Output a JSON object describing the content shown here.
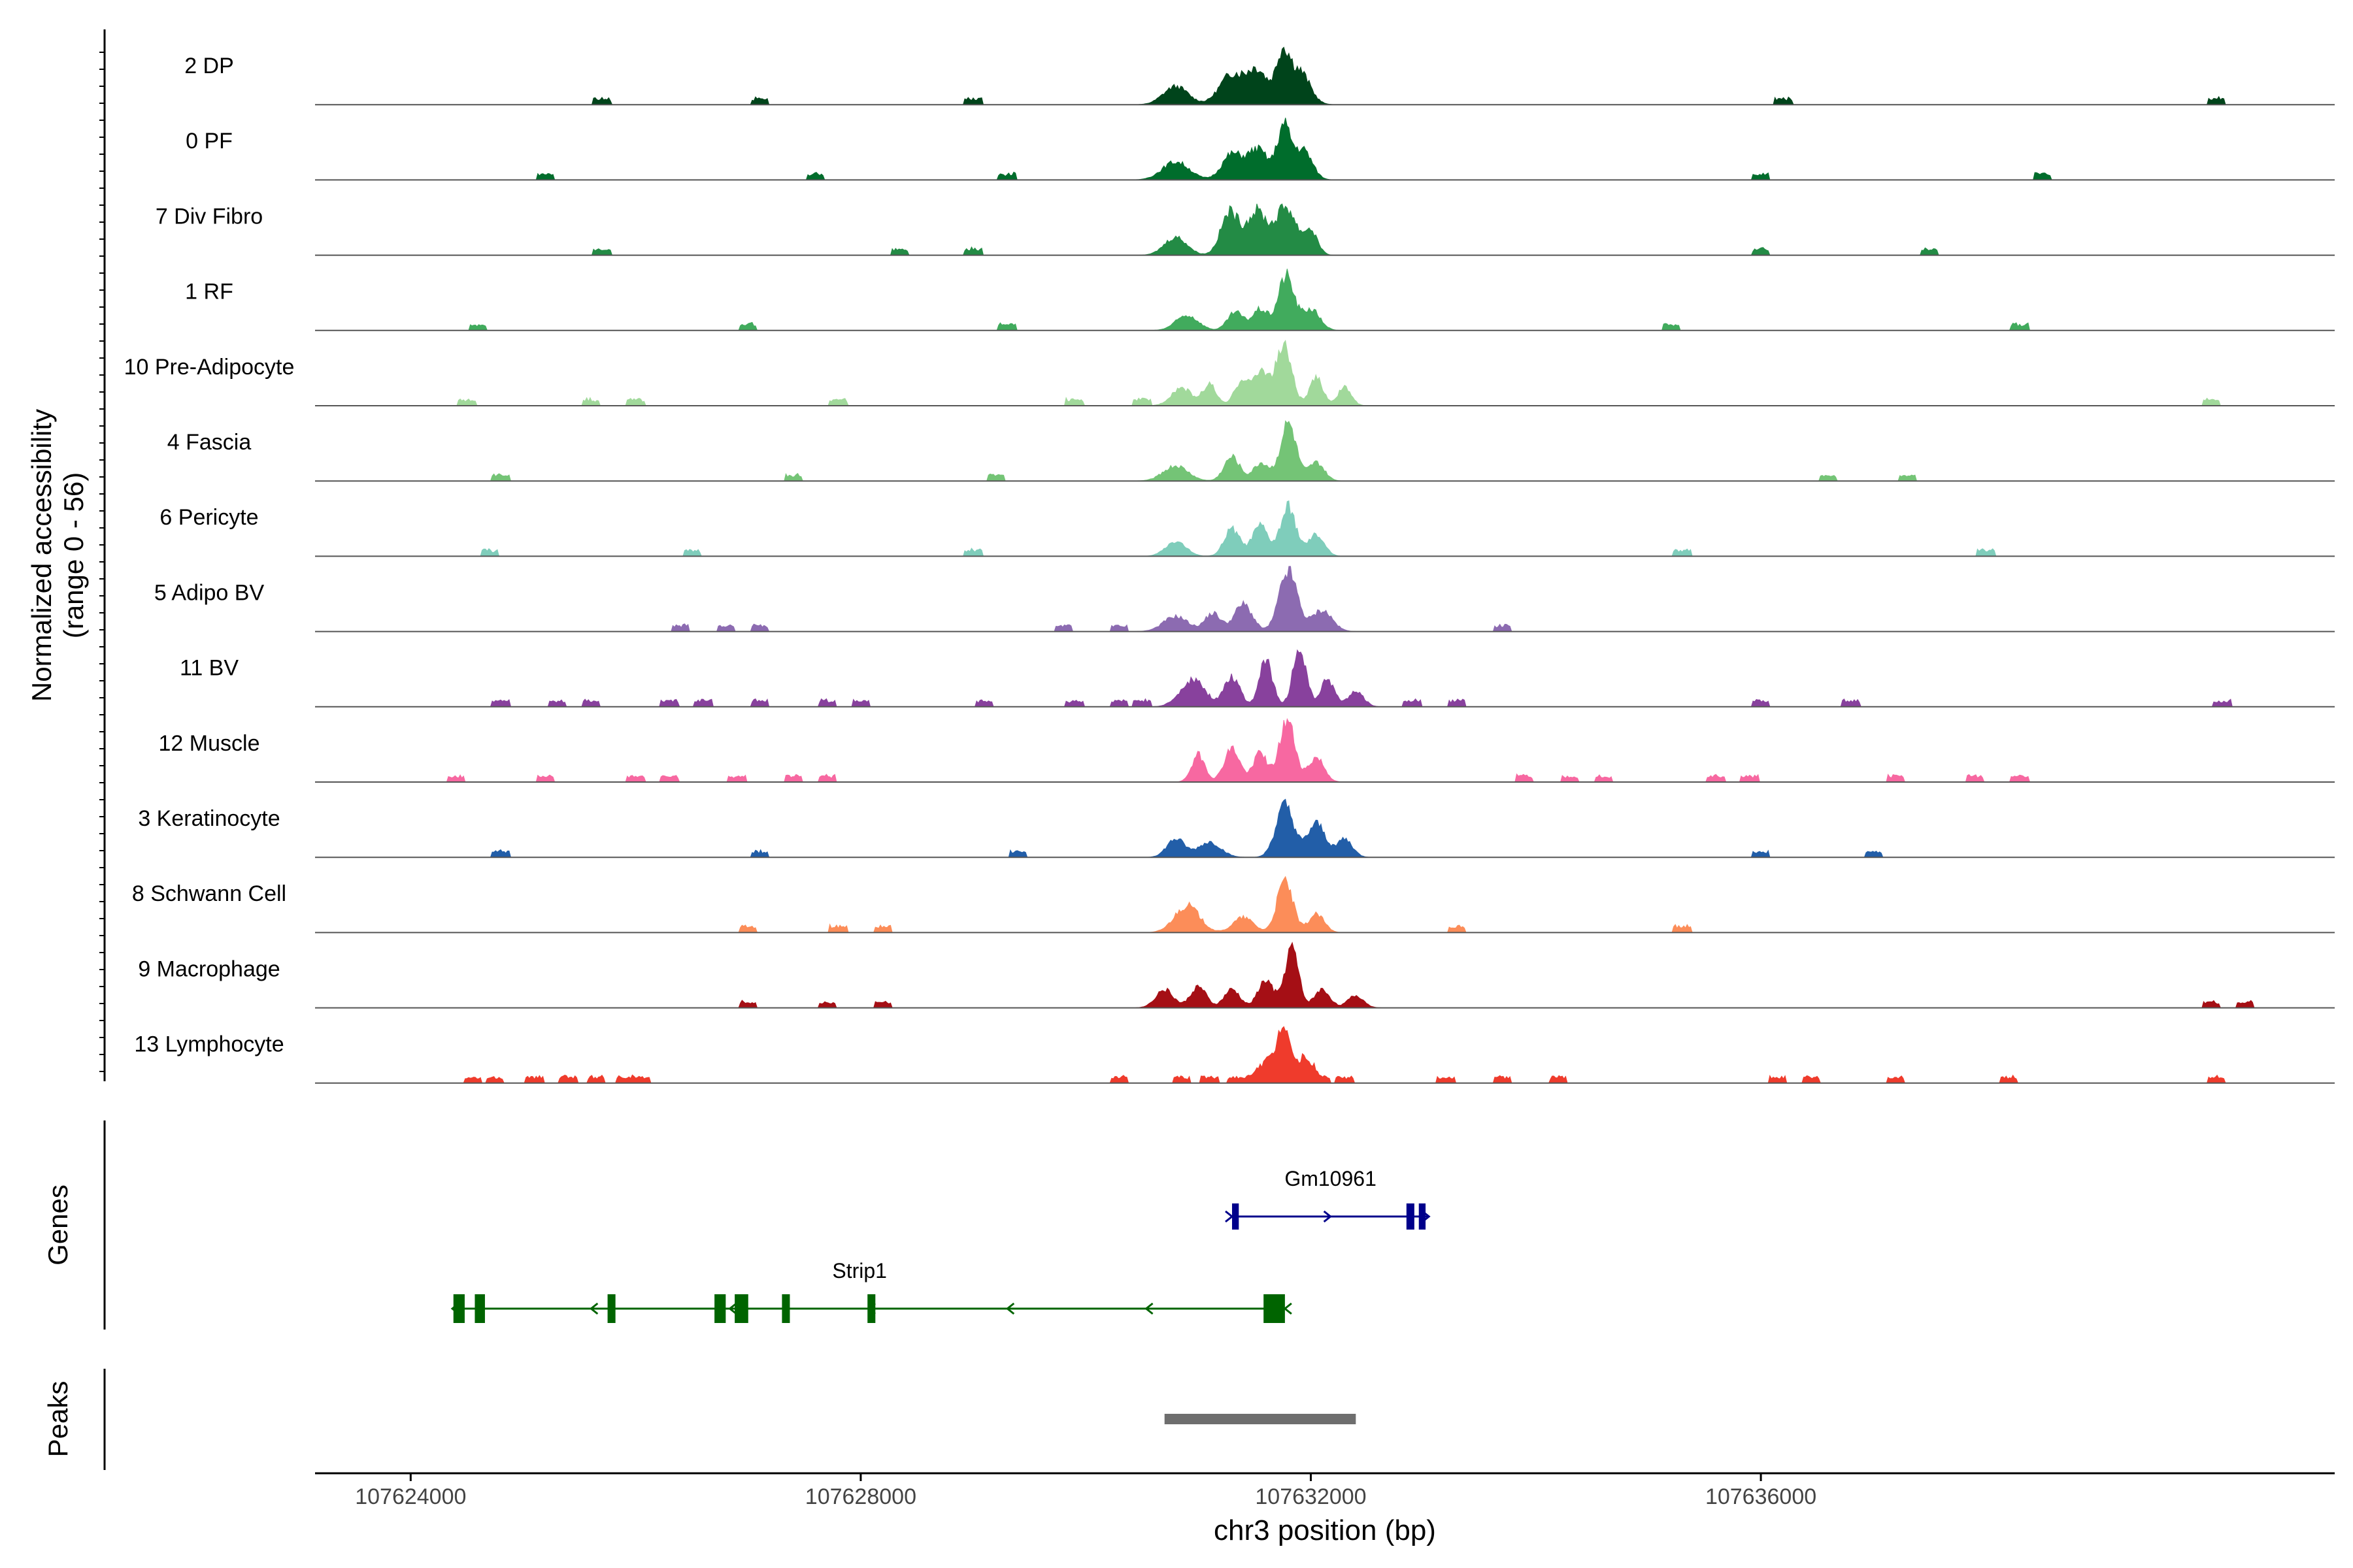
{
  "chart_data": {
    "type": "area",
    "title": "",
    "xlabel": "chr3 position (bp)",
    "ylabel_lines": [
      "Normalized accessibility",
      "(range 0 - 56)"
    ],
    "yrange": [
      0,
      56
    ],
    "xlim": [
      107623150,
      107641100
    ],
    "xticks": [
      107624000,
      107628000,
      107632000,
      107636000
    ],
    "xtick_labels": [
      "107624000",
      "107628000",
      "107632000",
      "107636000"
    ],
    "tracks": [
      {
        "label": "2 DP",
        "color": "#00441b",
        "peaks": [
          [
            107630800,
            110,
            0.3
          ],
          [
            107631300,
            110,
            0.5
          ],
          [
            107631530,
            90,
            0.55
          ],
          [
            107631750,
            60,
            0.8
          ],
          [
            107631900,
            90,
            0.55
          ]
        ],
        "blips": [
          107625700,
          107627100,
          107629000,
          107636200,
          107640050
        ]
      },
      {
        "label": "0 PF",
        "color": "#006d2c",
        "peaks": [
          [
            107630800,
            120,
            0.3
          ],
          [
            107631300,
            90,
            0.42
          ],
          [
            107631530,
            90,
            0.5
          ],
          [
            107631760,
            60,
            0.85
          ],
          [
            107631930,
            80,
            0.5
          ]
        ],
        "blips": [
          107625200,
          107627600,
          107629300,
          107636000,
          107638500
        ]
      },
      {
        "label": "7 Div Fibro",
        "color": "#238b45",
        "peaks": [
          [
            107630800,
            100,
            0.3
          ],
          [
            107631280,
            80,
            0.7
          ],
          [
            107631520,
            90,
            0.72
          ],
          [
            107631780,
            90,
            0.8
          ],
          [
            107632000,
            60,
            0.4
          ]
        ],
        "blips": [
          107625700,
          107628350,
          107629000,
          107636000,
          107637500
        ]
      },
      {
        "label": "1 RF",
        "color": "#41ab5d",
        "peaks": [
          [
            107630900,
            100,
            0.25
          ],
          [
            107631330,
            70,
            0.3
          ],
          [
            107631550,
            70,
            0.35
          ],
          [
            107631780,
            70,
            0.9
          ],
          [
            107632000,
            80,
            0.35
          ]
        ],
        "blips": [
          107624600,
          107627000,
          107629300,
          107635200,
          107638300
        ]
      },
      {
        "label": "10 Pre-Adipocyte",
        "color": "#a1d99b",
        "peaks": [
          [
            107630850,
            90,
            0.3
          ],
          [
            107631100,
            60,
            0.35
          ],
          [
            107631400,
            70,
            0.45
          ],
          [
            107631570,
            60,
            0.55
          ],
          [
            107631760,
            70,
            1.0
          ],
          [
            107632050,
            60,
            0.45
          ],
          [
            107632300,
            60,
            0.3
          ]
        ],
        "blips": [
          107624500,
          107625600,
          107626000,
          107627800,
          107629900,
          107630500,
          107640000
        ]
      },
      {
        "label": "4 Fascia",
        "color": "#74c476",
        "peaks": [
          [
            107630800,
            110,
            0.25
          ],
          [
            107631300,
            70,
            0.4
          ],
          [
            107631560,
            70,
            0.3
          ],
          [
            107631800,
            70,
            0.95
          ],
          [
            107632050,
            70,
            0.3
          ]
        ],
        "blips": [
          107624800,
          107627400,
          107629200,
          107636600,
          107637300
        ]
      },
      {
        "label": "6 Pericyte",
        "color": "#7fcdbb",
        "peaks": [
          [
            107630800,
            90,
            0.25
          ],
          [
            107631300,
            70,
            0.45
          ],
          [
            107631550,
            70,
            0.5
          ],
          [
            107631800,
            70,
            0.8
          ],
          [
            107632050,
            70,
            0.35
          ]
        ],
        "blips": [
          107624700,
          107626500,
          107629000,
          107635300,
          107638000
        ]
      },
      {
        "label": "5 Adipo BV",
        "color": "#8c6bb1",
        "peaks": [
          [
            107630800,
            110,
            0.25
          ],
          [
            107631130,
            70,
            0.3
          ],
          [
            107631400,
            80,
            0.45
          ],
          [
            107631800,
            80,
            1.0
          ],
          [
            107632100,
            90,
            0.35
          ]
        ],
        "blips": [
          107626400,
          107626800,
          107627100,
          107629800,
          107630300,
          107633700
        ]
      },
      {
        "label": "11 BV",
        "color": "#88419d",
        "peaks": [
          [
            107630950,
            110,
            0.45
          ],
          [
            107631300,
            70,
            0.5
          ],
          [
            107631600,
            60,
            0.75
          ],
          [
            107631900,
            60,
            0.95
          ],
          [
            107632150,
            60,
            0.45
          ],
          [
            107632400,
            70,
            0.25
          ]
        ],
        "blips": [
          107624800,
          107625300,
          107625600,
          107626300,
          107626600,
          107627100,
          107627700,
          107628000,
          107629100,
          107629900,
          107630300,
          107630500,
          107632900,
          107633300,
          107636000,
          107636800,
          107640100
        ]
      },
      {
        "label": "12 Muscle",
        "color": "#f768a1",
        "peaks": [
          [
            107631000,
            60,
            0.45
          ],
          [
            107631300,
            70,
            0.55
          ],
          [
            107631550,
            60,
            0.5
          ],
          [
            107631790,
            70,
            1.0
          ],
          [
            107632050,
            70,
            0.4
          ]
        ],
        "blips": [
          107624400,
          107625200,
          107626000,
          107626300,
          107626900,
          107627400,
          107627700,
          107633900,
          107634300,
          107634600,
          107635600,
          107635900,
          107637200,
          107637900,
          107638300
        ]
      },
      {
        "label": "3 Keratinocyte",
        "color": "#225ea8",
        "peaks": [
          [
            107630800,
            80,
            0.3
          ],
          [
            107631100,
            100,
            0.25
          ],
          [
            107631770,
            80,
            0.85
          ],
          [
            107632050,
            80,
            0.55
          ],
          [
            107632300,
            70,
            0.3
          ]
        ],
        "blips": [
          107624800,
          107627100,
          107629400,
          107636000,
          107637000
        ]
      },
      {
        "label": "8 Schwann Cell",
        "color": "#fc8d59",
        "peaks": [
          [
            107630900,
            110,
            0.45
          ],
          [
            107631400,
            90,
            0.25
          ],
          [
            107631770,
            70,
            0.85
          ],
          [
            107632050,
            70,
            0.3
          ]
        ],
        "blips": [
          107627000,
          107627800,
          107628200,
          107633300,
          107635300
        ]
      },
      {
        "label": "9 Macrophage",
        "color": "#a50f15",
        "peaks": [
          [
            107630700,
            80,
            0.3
          ],
          [
            107631000,
            70,
            0.35
          ],
          [
            107631300,
            70,
            0.3
          ],
          [
            107631600,
            70,
            0.45
          ],
          [
            107631830,
            60,
            1.0
          ],
          [
            107632100,
            70,
            0.3
          ],
          [
            107632400,
            70,
            0.2
          ]
        ],
        "blips": [
          107627000,
          107627700,
          107628200,
          107640000,
          107640300
        ]
      },
      {
        "label": "13 Lymphocyte",
        "color": "#ef3b2c",
        "peaks": [
          [
            107631760,
            60,
            1.0
          ],
          [
            107631950,
            60,
            0.45
          ],
          [
            107631600,
            60,
            0.35
          ]
        ],
        "blips": [
          107624550,
          107624750,
          107625100,
          107625400,
          107625650,
          107625900,
          107626050,
          107630300,
          107630850,
          107631100,
          107631330,
          107631480,
          107632100,
          107632300,
          107633200,
          107633700,
          107634200,
          107636150,
          107636450,
          107637200,
          107638200,
          107640050
        ]
      }
    ],
    "genes": [
      {
        "name": "Gm10961",
        "strand": "+",
        "color": "#00008b",
        "start": 107631300,
        "end": 107633050,
        "exons": [
          [
            107631300,
            107631360
          ],
          [
            107632850,
            107632920
          ],
          [
            107632960,
            107633020
          ]
        ]
      },
      {
        "name": "Strip1",
        "strand": "-",
        "color": "#006400",
        "start": 107624370,
        "end": 107631770,
        "exons": [
          [
            107624380,
            107624480
          ],
          [
            107624570,
            107624660
          ],
          [
            107625750,
            107625820
          ],
          [
            107626700,
            107626800
          ],
          [
            107626880,
            107627000
          ],
          [
            107627300,
            107627370
          ],
          [
            107628060,
            107628130
          ],
          [
            107631580,
            107631770
          ]
        ]
      }
    ],
    "peak_regions": [
      [
        107630700,
        107632400
      ]
    ],
    "track_panel_label": "",
    "genes_panel_label": "Genes",
    "peaks_panel_label": "Peaks",
    "colors": {
      "axis": "#000000",
      "baseline": "#555555",
      "peak_bar": "#6e6e6e",
      "tick_text": "#444444"
    }
  }
}
